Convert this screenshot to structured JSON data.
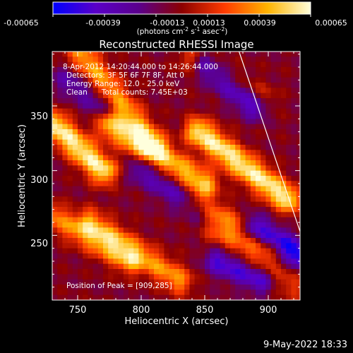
{
  "colorbar": {
    "ticks": [
      "-0.00065",
      "-0.00039",
      "-0.00013",
      "0.00013",
      "0.00039",
      "0.00065"
    ],
    "units": "(photons cm",
    "units_exp1": "-2",
    "units_mid": " s",
    "units_exp2": "-1",
    "units_end": " asec",
    "units_exp3": "-2",
    "units_close": ")",
    "stops": [
      "#0000ff",
      "#5a00c8",
      "#5b008c",
      "#8c0000",
      "#ff3c00",
      "#ffb400",
      "#ffffdc"
    ]
  },
  "chart_data": {
    "type": "heatmap",
    "title": "Reconstructed RHESSI Image",
    "xlabel": "Heliocentric X (arcsec)",
    "ylabel": "Heliocentric Y (arcsec)",
    "xlim": [
      730,
      925
    ],
    "ylim": [
      200,
      392
    ],
    "xticks": [
      750,
      800,
      850,
      900
    ],
    "yticks": [
      250,
      300,
      350
    ],
    "value_range": [
      -0.00065,
      0.00065
    ],
    "annotations": [
      "8-Apr-2012 14:20:44.000 to 14:26:44.000",
      "Detectors: 3F 5F 6F 7F 8F, Att 0",
      "Energy Range: 12.0 - 25.0 keV",
      "Clean      Total counts: 7.45E+03"
    ],
    "peak_label": "Position of Peak = [909,285]",
    "peak": {
      "x": 909,
      "y": 285,
      "value": 0.00065
    },
    "limb_line": [
      [
        877,
        392
      ],
      [
        925,
        253
      ]
    ],
    "ridges": [
      {
        "x1": 745,
        "y1": 400,
        "x2": 810,
        "y2": 320,
        "amp": 0.00045
      },
      {
        "x1": 732,
        "y1": 335,
        "x2": 770,
        "y2": 300,
        "amp": 0.00065
      },
      {
        "x1": 775,
        "y1": 335,
        "x2": 850,
        "y2": 290,
        "amp": 0.00052
      },
      {
        "x1": 845,
        "y1": 330,
        "x2": 915,
        "y2": 278,
        "amp": 0.00065
      },
      {
        "x1": 730,
        "y1": 265,
        "x2": 790,
        "y2": 230,
        "amp": 0.00038
      },
      {
        "x1": 760,
        "y1": 260,
        "x2": 830,
        "y2": 215,
        "amp": 0.00042
      },
      {
        "x1": 845,
        "y1": 275,
        "x2": 900,
        "y2": 240,
        "amp": 0.00035
      },
      {
        "x1": 840,
        "y1": 385,
        "x2": 895,
        "y2": 355,
        "amp": 0.0003
      },
      {
        "x1": 860,
        "y1": 250,
        "x2": 920,
        "y2": 210,
        "amp": 0.00022
      }
    ],
    "troughs": [
      {
        "x1": 850,
        "y1": 380,
        "x2": 890,
        "y2": 350,
        "amp": 0.00055
      },
      {
        "x1": 890,
        "y1": 255,
        "x2": 925,
        "y2": 235,
        "amp": 0.0006
      },
      {
        "x1": 860,
        "y1": 230,
        "x2": 895,
        "y2": 215,
        "amp": 0.00045
      },
      {
        "x1": 800,
        "y1": 300,
        "x2": 845,
        "y2": 270,
        "amp": 0.0003
      },
      {
        "x1": 740,
        "y1": 370,
        "x2": 770,
        "y2": 350,
        "amp": 0.00025
      }
    ]
  },
  "timestamp": "9-May-2022 18:33"
}
